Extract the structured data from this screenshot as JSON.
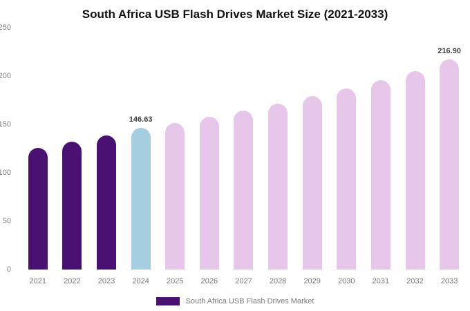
{
  "title": "South Africa USB Flash Drives Market Size (2021-2033)",
  "legend": {
    "label": "South Africa USB Flash Drives Market"
  },
  "colors": {
    "historical": "#4A1173",
    "highlight": "#A6CEE3",
    "forecast": "#E6C7E9",
    "axis_text": "#7f7f7f",
    "value_text": "#3d3d3d"
  },
  "chart_data": {
    "type": "bar",
    "title": "South Africa USB Flash Drives Market Size (2021-2033)",
    "categories": [
      "2021",
      "2022",
      "2023",
      "2024",
      "2025",
      "2026",
      "2027",
      "2028",
      "2029",
      "2030",
      "2031",
      "2032",
      "2033"
    ],
    "values": [
      126,
      132.5,
      138.8,
      146.63,
      151.5,
      158,
      164.5,
      171.5,
      179,
      187.5,
      196,
      205,
      216.9
    ],
    "bar_colors": [
      "#4A1173",
      "#4A1173",
      "#4A1173",
      "#A6CEE3",
      "#E6C7E9",
      "#E6C7E9",
      "#E6C7E9",
      "#E6C7E9",
      "#E6C7E9",
      "#E6C7E9",
      "#E6C7E9",
      "#E6C7E9",
      "#E6C7E9"
    ],
    "annotations": [
      {
        "category": "2024",
        "text": "146.63"
      },
      {
        "category": "2033",
        "text": "216.90"
      }
    ],
    "ylim": [
      0,
      250
    ],
    "yticks": [
      0,
      50,
      100,
      150,
      200,
      250
    ],
    "xlabel": "",
    "ylabel": "",
    "grid": false,
    "legend_position": "bottom",
    "legend_label": "South Africa USB Flash Drives Market"
  }
}
